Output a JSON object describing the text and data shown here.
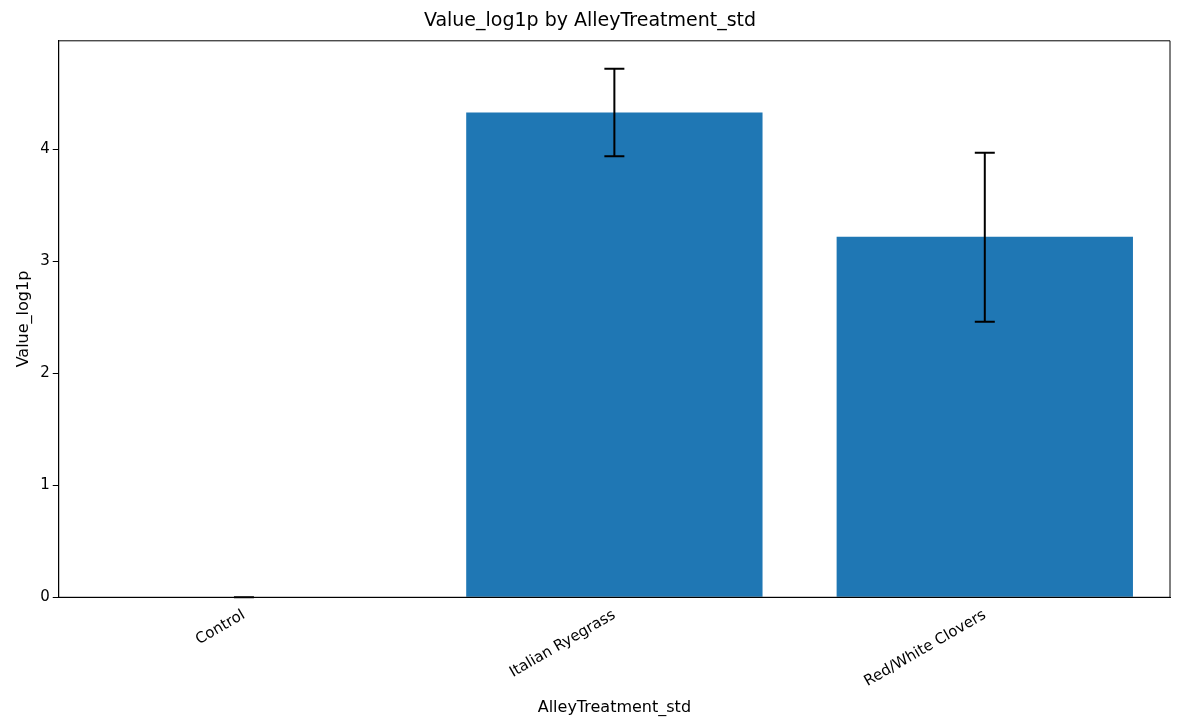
{
  "chart_data": {
    "type": "bar",
    "title": "Value_log1p by AlleyTreatment_std",
    "xlabel": "AlleyTreatment_std",
    "ylabel": "Value_log1p",
    "categories": [
      "Control",
      "Italian Ryegrass",
      "Red/White Clovers"
    ],
    "values": [
      0,
      4.33,
      3.22
    ],
    "errors": [
      0,
      [
        3.94,
        4.72
      ],
      [
        2.46,
        3.97
      ]
    ],
    "color": "#1f77b4",
    "ylim": [
      0,
      4.97
    ],
    "yticks": [
      0,
      1,
      2,
      3,
      4
    ],
    "grid": false,
    "legend": false
  }
}
